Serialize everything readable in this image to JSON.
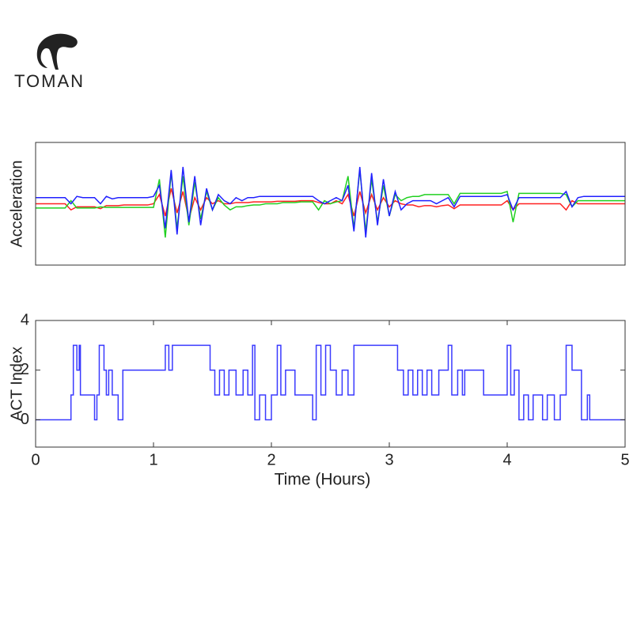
{
  "logo": {
    "text": "TOMAN"
  },
  "chart_data": [
    {
      "type": "line",
      "ylabel": "Acceleration",
      "xlim": [
        0,
        5
      ],
      "ylim": [
        -1,
        1
      ],
      "x": [
        0,
        0.05,
        0.1,
        0.15,
        0.2,
        0.25,
        0.3,
        0.35,
        0.4,
        0.45,
        0.5,
        0.55,
        0.6,
        0.65,
        0.7,
        0.75,
        0.8,
        0.85,
        0.9,
        0.95,
        1,
        1.05,
        1.1,
        1.15,
        1.2,
        1.25,
        1.3,
        1.35,
        1.4,
        1.45,
        1.5,
        1.55,
        1.6,
        1.65,
        1.7,
        1.75,
        1.8,
        1.85,
        1.9,
        1.95,
        2,
        2.05,
        2.1,
        2.15,
        2.2,
        2.25,
        2.3,
        2.35,
        2.4,
        2.45,
        2.5,
        2.55,
        2.6,
        2.65,
        2.7,
        2.75,
        2.8,
        2.85,
        2.9,
        2.95,
        3,
        3.05,
        3.1,
        3.15,
        3.2,
        3.25,
        3.3,
        3.35,
        3.4,
        3.45,
        3.5,
        3.55,
        3.6,
        3.65,
        3.7,
        3.75,
        3.8,
        3.85,
        3.9,
        3.95,
        4,
        4.05,
        4.1,
        4.15,
        4.2,
        4.25,
        4.3,
        4.35,
        4.4,
        4.45,
        4.5,
        4.55,
        4.6,
        4.65,
        4.7,
        4.75,
        4.8,
        4.85,
        4.9,
        4.95,
        5
      ],
      "series": [
        {
          "color": "#ff2020",
          "values": [
            0,
            0,
            0,
            0,
            0,
            0,
            -0.1,
            -0.05,
            -0.05,
            -0.05,
            -0.05,
            -0.08,
            -0.03,
            -0.03,
            -0.03,
            -0.02,
            -0.02,
            -0.02,
            -0.02,
            -0.02,
            0,
            0.15,
            -0.2,
            0.25,
            -0.15,
            0.2,
            -0.25,
            0.1,
            -0.1,
            0.1,
            0,
            0.05,
            0,
            0,
            0.02,
            0.02,
            0.02,
            0.03,
            0.03,
            0.03,
            0.03,
            0.04,
            0.04,
            0.04,
            0.04,
            0.05,
            0.05,
            0.05,
            0.02,
            0,
            0,
            0.05,
            0,
            0.15,
            -0.2,
            0.2,
            -0.15,
            0.15,
            -0.1,
            0.1,
            -0.05,
            0.05,
            0,
            -0.02,
            -0.02,
            -0.05,
            -0.03,
            -0.03,
            -0.05,
            -0.03,
            -0.02,
            -0.08,
            -0.02,
            -0.02,
            -0.02,
            -0.02,
            -0.02,
            -0.02,
            -0.02,
            -0.02,
            0.05,
            -0.1,
            0,
            0,
            0,
            0,
            0,
            0,
            0,
            0,
            -0.1,
            0.05,
            0,
            0,
            0,
            0,
            0,
            0,
            0,
            0,
            0
          ]
        },
        {
          "color": "#20d020",
          "values": [
            -0.07,
            -0.07,
            -0.07,
            -0.07,
            -0.07,
            -0.07,
            0.05,
            -0.07,
            -0.07,
            -0.07,
            -0.07,
            -0.05,
            -0.06,
            -0.06,
            -0.06,
            -0.06,
            -0.06,
            -0.06,
            -0.06,
            -0.06,
            -0.06,
            0.4,
            -0.55,
            0.5,
            -0.4,
            0.45,
            -0.35,
            0.35,
            -0.25,
            0.2,
            -0.1,
            0.1,
            -0.02,
            -0.1,
            -0.05,
            -0.05,
            -0.03,
            -0.02,
            -0.02,
            0,
            0,
            0,
            0.02,
            0.02,
            0.02,
            0.03,
            0.03,
            0.03,
            -0.1,
            0.05,
            0,
            0.03,
            0.05,
            0.45,
            -0.4,
            0.55,
            -0.45,
            0.4,
            -0.3,
            0.3,
            -0.2,
            0.15,
            0.05,
            0.1,
            0.12,
            0.12,
            0.15,
            0.15,
            0.15,
            0.15,
            0.15,
            0,
            0.17,
            0.17,
            0.17,
            0.17,
            0.17,
            0.17,
            0.17,
            0.17,
            0.2,
            -0.3,
            0.17,
            0.17,
            0.17,
            0.17,
            0.17,
            0.17,
            0.17,
            0.17,
            0.15,
            -0.05,
            0.05,
            0.05,
            0.05,
            0.05,
            0.05,
            0.05,
            0.05,
            0.05,
            0.05
          ]
        },
        {
          "color": "#2020ff",
          "values": [
            0.1,
            0.1,
            0.1,
            0.1,
            0.1,
            0.1,
            0,
            0.12,
            0.1,
            0.1,
            0.1,
            0,
            0.12,
            0.08,
            0.1,
            0.1,
            0.1,
            0.1,
            0.1,
            0.1,
            0.12,
            0.3,
            -0.4,
            0.55,
            -0.5,
            0.6,
            -0.3,
            0.45,
            -0.35,
            0.25,
            -0.1,
            0.15,
            0.05,
            0,
            0.1,
            0.05,
            0.1,
            0.1,
            0.12,
            0.12,
            0.12,
            0.12,
            0.12,
            0.12,
            0.12,
            0.12,
            0.12,
            0.12,
            0.05,
            0,
            0.05,
            0.1,
            0.05,
            0.3,
            -0.45,
            0.6,
            -0.55,
            0.5,
            -0.35,
            0.4,
            -0.2,
            0.2,
            -0.1,
            0,
            0.05,
            0.05,
            0.05,
            0.05,
            0,
            0.05,
            0.1,
            -0.05,
            0.12,
            0.12,
            0.12,
            0.12,
            0.12,
            0.12,
            0.12,
            0.12,
            0.15,
            -0.1,
            0.1,
            0.1,
            0.1,
            0.1,
            0.1,
            0.1,
            0.1,
            0.1,
            0.2,
            -0.05,
            0.1,
            0.12,
            0.12,
            0.12,
            0.12,
            0.12,
            0.12,
            0.12,
            0.12
          ]
        }
      ]
    },
    {
      "type": "line",
      "drawstyle": "steps-post",
      "xlabel": "Time (Hours)",
      "ylabel": "ACT Index",
      "xlim": [
        0,
        5
      ],
      "ylim": [
        -1.1,
        4
      ],
      "xticks": [
        0,
        1,
        2,
        3,
        4,
        5
      ],
      "yticks": [
        0,
        2,
        4
      ],
      "x": [
        0,
        0.3,
        0.32,
        0.35,
        0.37,
        0.38,
        0.5,
        0.52,
        0.54,
        0.58,
        0.6,
        0.62,
        0.65,
        0.7,
        0.74,
        1.1,
        1.13,
        1.16,
        1.48,
        1.52,
        1.56,
        1.6,
        1.64,
        1.7,
        1.76,
        1.8,
        1.84,
        1.86,
        1.9,
        1.95,
        2,
        2.05,
        2.08,
        2.12,
        2.2,
        2.35,
        2.38,
        2.42,
        2.46,
        2.5,
        2.55,
        2.6,
        2.65,
        2.7,
        3.07,
        3.12,
        3.16,
        3.2,
        3.24,
        3.28,
        3.32,
        3.36,
        3.42,
        3.5,
        3.53,
        3.58,
        3.62,
        3.64,
        3.8,
        4,
        4.03,
        4.06,
        4.1,
        4.14,
        4.18,
        4.22,
        4.3,
        4.34,
        4.4,
        4.45,
        4.5,
        4.55,
        4.63,
        4.68,
        4.7,
        5
      ],
      "series": [
        {
          "color": "#3a3aff",
          "values": [
            0,
            1,
            3,
            2,
            3,
            1,
            0,
            1,
            3,
            2,
            1,
            2,
            1,
            0,
            2,
            3,
            2,
            3,
            2,
            1,
            2,
            1,
            2,
            1,
            2,
            1,
            3,
            0,
            1,
            0,
            1,
            3,
            1,
            2,
            1,
            0,
            3,
            1,
            3,
            2,
            1,
            2,
            1,
            3,
            2,
            1,
            2,
            1,
            2,
            1,
            2,
            1,
            2,
            3,
            1,
            2,
            1,
            2,
            1,
            3,
            1,
            2,
            0,
            1,
            0,
            1,
            0,
            1,
            0,
            1,
            3,
            2,
            0,
            1,
            0,
            0
          ]
        }
      ]
    }
  ]
}
